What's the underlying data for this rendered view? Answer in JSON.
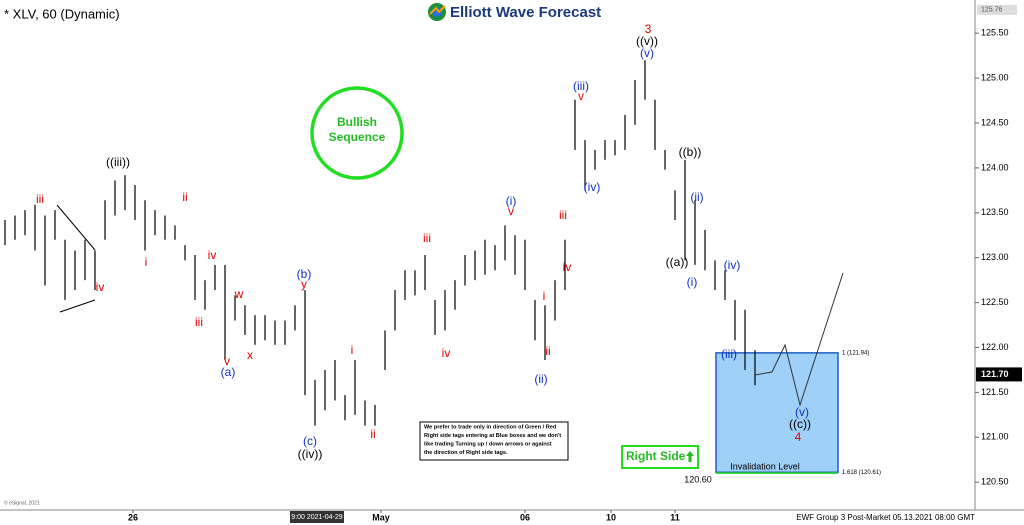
{
  "header": {
    "symbol": "* XLV, 60 (Dynamic)",
    "logo": "Elliott Wave Forecast",
    "badge": "Bullish Sequence",
    "right_side": "Right Side",
    "note": [
      "We prefer to trade only in direction of Green / Red",
      "Right side tags entering at Blue boxes and we don't",
      "like trading Turning up / down arrows or against",
      "the direction of Right side tags."
    ],
    "footer": "EWF Group 3 Post-Market 05.13.2021 08:00 GMT",
    "copyright": "© eSignal, 2021",
    "cursor_time": "9:00 2021-04-29"
  },
  "chart_data": {
    "type": "range-bar",
    "color": "#000000",
    "high": [
      123.42,
      123.47,
      123.53,
      123.59,
      123.47,
      123.53,
      123.2,
      123.08,
      123.2,
      123.08,
      123.64,
      123.86,
      123.92,
      123.81,
      123.64,
      123.53,
      123.47,
      123.36,
      123.14,
      123.03,
      122.75,
      122.92,
      122.92,
      122.58,
      122.47,
      122.36,
      122.36,
      122.3,
      122.3,
      122.47,
      122.64,
      121.64,
      121.75,
      121.86,
      121.47,
      121.86,
      121.41,
      121.36,
      122.19,
      122.64,
      122.86,
      122.86,
      123.03,
      122.53,
      122.64,
      122.75,
      123.03,
      123.08,
      123.2,
      123.14,
      123.36,
      123.25,
      123.2,
      122.53,
      122.47,
      122.75,
      123.2,
      124.76,
      124.31,
      124.2,
      124.31,
      124.31,
      124.59,
      124.98,
      125.2,
      124.76,
      124.2,
      123.75,
      124.09,
      123.64,
      123.31,
      122.97,
      122.86,
      122.53,
      122.42,
      121.97
    ],
    "low": [
      123.14,
      123.2,
      123.25,
      123.08,
      122.69,
      123.2,
      122.53,
      122.64,
      122.75,
      122.64,
      123.2,
      123.47,
      123.53,
      123.42,
      123.08,
      123.25,
      123.2,
      123.2,
      122.97,
      122.53,
      122.42,
      122.64,
      121.86,
      122.3,
      122.14,
      122.03,
      122.08,
      122.03,
      122.03,
      122.19,
      121.47,
      121.13,
      121.3,
      121.41,
      121.19,
      121.25,
      121.13,
      121.13,
      121.75,
      122.19,
      122.53,
      122.58,
      122.64,
      122.14,
      122.19,
      122.42,
      122.69,
      122.75,
      122.81,
      122.86,
      122.97,
      122.81,
      122.64,
      122.08,
      121.86,
      122.3,
      122.64,
      124.2,
      123.75,
      123.98,
      124.09,
      124.14,
      124.2,
      124.48,
      124.76,
      124.2,
      123.98,
      123.42,
      122.97,
      122.92,
      122.86,
      122.64,
      122.53,
      122.08,
      121.75,
      121.58
    ],
    "xlim": [
      0,
      97
    ],
    "xticks": [
      {
        "value": 12.8,
        "label": "26"
      },
      {
        "value": 37.6,
        "label": "May"
      },
      {
        "value": 52,
        "label": "06"
      },
      {
        "value": 60.6,
        "label": "10"
      },
      {
        "value": 67,
        "label": "11"
      }
    ],
    "ylim": [
      120.19,
      125.87
    ],
    "yticks": [
      {
        "value": 120.5,
        "label": "120.50"
      },
      {
        "value": 121,
        "label": "121.00"
      },
      {
        "value": 121.5,
        "label": "121.50"
      },
      {
        "value": 122,
        "label": "122.00"
      },
      {
        "value": 122.5,
        "label": "122.50"
      },
      {
        "value": 123,
        "label": "123.00"
      },
      {
        "value": 123.5,
        "label": "123.50"
      },
      {
        "value": 124,
        "label": "124.00"
      },
      {
        "value": 124.5,
        "label": "124.50"
      },
      {
        "value": 125,
        "label": "125.00"
      },
      {
        "value": 125.5,
        "label": "125.50"
      }
    ],
    "last_price": {
      "value": 121.7,
      "label": "121.70"
    },
    "scale_high": 125.76,
    "levels": [
      {
        "value": 121.94,
        "label": "1 (121.94)"
      },
      {
        "value": 120.61,
        "label": "1.618 (120.61)"
      }
    ],
    "invalidation": {
      "value": 120.6,
      "label": "120.60",
      "text": "Invalidation Level"
    },
    "box_color": "#9fd0f7",
    "wave_labels": [
      {
        "text": "iii",
        "color": "#e00000"
      },
      {
        "text": "iv",
        "color": "#e00000"
      },
      {
        "text": "((iii))",
        "color": "#000000"
      },
      {
        "text": "i",
        "color": "#e00000"
      },
      {
        "text": "ii",
        "color": "#e00000"
      },
      {
        "text": "iv",
        "color": "#e00000"
      },
      {
        "text": "iii",
        "color": "#e00000"
      },
      {
        "text": "w",
        "color": "#e00000"
      },
      {
        "text": "v",
        "color": "#e00000"
      },
      {
        "text": "(a)",
        "color": "#1030c0"
      },
      {
        "text": "x",
        "color": "#e00000"
      },
      {
        "text": "(b)",
        "color": "#1030c0"
      },
      {
        "text": "y",
        "color": "#e00000"
      },
      {
        "text": "(c)",
        "color": "#1030c0"
      },
      {
        "text": "((iv))",
        "color": "#000000"
      },
      {
        "text": "i",
        "color": "#e00000"
      },
      {
        "text": "ii",
        "color": "#e00000"
      },
      {
        "text": "iii",
        "color": "#e00000"
      },
      {
        "text": "iv",
        "color": "#e00000"
      },
      {
        "text": "(i)",
        "color": "#1030c0"
      },
      {
        "text": "v",
        "color": "#e00000"
      },
      {
        "text": "iii",
        "color": "#e00000"
      },
      {
        "text": "iv",
        "color": "#e00000"
      },
      {
        "text": "i",
        "color": "#e00000"
      },
      {
        "text": "ii",
        "color": "#e00000"
      },
      {
        "text": "(ii)",
        "color": "#1030c0"
      },
      {
        "text": "(iii)",
        "color": "#1030c0"
      },
      {
        "text": "v",
        "color": "#e00000"
      },
      {
        "text": "(iv)",
        "color": "#1030c0"
      },
      {
        "text": "3",
        "color": "#e00000"
      },
      {
        "text": "((v))",
        "color": "#000000"
      },
      {
        "text": "(v)",
        "color": "#1030c0"
      },
      {
        "text": "((b))",
        "color": "#000000"
      },
      {
        "text": "(ii)",
        "color": "#1030c0"
      },
      {
        "text": "((a))",
        "color": "#000000"
      },
      {
        "text": "(i)",
        "color": "#1030c0"
      },
      {
        "text": "(iv)",
        "color": "#1030c0"
      },
      {
        "text": "(iii)",
        "color": "#1030c0"
      },
      {
        "text": "(v)",
        "color": "#1030c0"
      },
      {
        "text": "((c))",
        "color": "#000000"
      },
      {
        "text": "4",
        "color": "#e00000"
      }
    ]
  }
}
